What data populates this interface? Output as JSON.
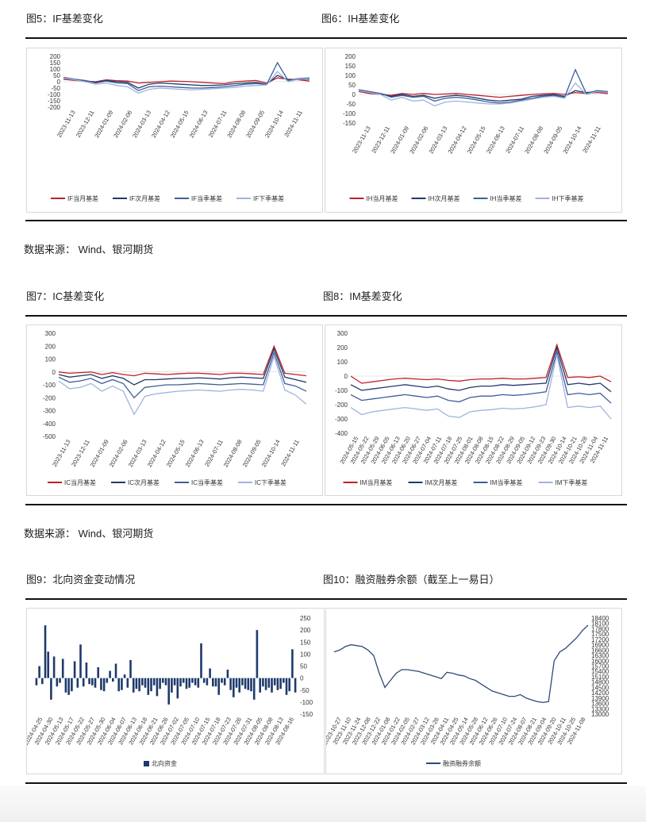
{
  "titles": {
    "fig5": "图5：IF基差变化",
    "fig6": "图6：IH基差变化",
    "fig7": "图7：IC基差变化",
    "fig8": "图8：IM基差变化",
    "fig9": "图9：北向资金变动情况",
    "fig10": "图10：融资融券余额（截至上一易日）"
  },
  "sources": {
    "s1": "数据来源：  Wind、银河期货",
    "s2": "数据来源：  Wind、银河期货"
  },
  "colors": {
    "near": "#c0202a",
    "next": "#1f3a6b",
    "quarter": "#3d5f9a",
    "far": "#9fb3dd",
    "bar": "#1f3a6b",
    "margin": "#2e4a78"
  },
  "chart_data": [
    {
      "id": "if",
      "type": "line",
      "ylim": [
        -200,
        200
      ],
      "yticks": [
        200,
        150,
        100,
        50,
        0,
        -50,
        -100,
        -150,
        -200
      ],
      "xticks": [
        "2023-11-13",
        "2023-12-11",
        "2024-01-09",
        "2024-02-06",
        "2024-03-13",
        "2024-04-12",
        "2024-05-15",
        "2024-06-13",
        "2024-07-11",
        "2024-08-08",
        "2024-09-05",
        "2024-10-14",
        "2024-11-11"
      ],
      "series": [
        {
          "name": "IF当月基差",
          "color_key": "near",
          "values": [
            20,
            10,
            5,
            0,
            15,
            8,
            5,
            -10,
            -5,
            0,
            5,
            3,
            0,
            -5,
            -10,
            -15,
            0,
            5,
            10,
            -10,
            30,
            20,
            15,
            5
          ]
        },
        {
          "name": "IF次月基差",
          "color_key": "next",
          "values": [
            30,
            15,
            8,
            -5,
            10,
            0,
            -5,
            -50,
            -20,
            -10,
            -15,
            -20,
            -25,
            -30,
            -28,
            -25,
            -15,
            -10,
            -5,
            -20,
            50,
            15,
            20,
            20
          ]
        },
        {
          "name": "IF当季基差",
          "color_key": "quarter",
          "values": [
            35,
            20,
            10,
            -10,
            5,
            -10,
            -15,
            -70,
            -40,
            -35,
            -40,
            -45,
            -50,
            -50,
            -45,
            -40,
            -30,
            -20,
            -15,
            -20,
            150,
            10,
            25,
            30
          ]
        },
        {
          "name": "IF下季基差",
          "color_key": "far",
          "values": [
            30,
            15,
            0,
            -20,
            -10,
            -30,
            -40,
            -90,
            -60,
            -50,
            -55,
            -60,
            -65,
            -60,
            -55,
            -50,
            -45,
            -35,
            -30,
            -25,
            80,
            0,
            20,
            25
          ]
        }
      ]
    },
    {
      "id": "ih",
      "type": "line",
      "ylim": [
        -150,
        200
      ],
      "yticks": [
        200,
        150,
        100,
        50,
        0,
        -50,
        -100,
        -150
      ],
      "xticks": [
        "2023-11-13",
        "2023-12-11",
        "2024-01-09",
        "2024-02-06",
        "2024-03-13",
        "2024-04-12",
        "2024-05-15",
        "2024-06-13",
        "2024-07-11",
        "2024-08-08",
        "2024-09-05",
        "2024-10-14",
        "2024-11-11"
      ],
      "series": [
        {
          "name": "IH当月基差",
          "color_key": "near",
          "values": [
            15,
            5,
            0,
            -5,
            5,
            0,
            5,
            0,
            2,
            5,
            0,
            -5,
            -10,
            -15,
            -10,
            -5,
            0,
            3,
            5,
            0,
            10,
            5,
            10,
            5
          ]
        },
        {
          "name": "IH次月基差",
          "color_key": "next",
          "values": [
            20,
            10,
            5,
            -10,
            0,
            -10,
            -5,
            -20,
            -10,
            -5,
            -10,
            -20,
            -30,
            -35,
            -30,
            -25,
            -10,
            -5,
            0,
            -10,
            20,
            10,
            15,
            10
          ]
        },
        {
          "name": "IH当季基差",
          "color_key": "quarter",
          "values": [
            25,
            15,
            5,
            -15,
            -5,
            -15,
            -10,
            -35,
            -20,
            -15,
            -20,
            -30,
            -40,
            -45,
            -40,
            -30,
            -20,
            -10,
            -5,
            -15,
            130,
            5,
            20,
            15
          ]
        },
        {
          "name": "IH下季基差",
          "color_key": "far",
          "values": [
            20,
            10,
            0,
            -30,
            -15,
            -35,
            -30,
            -60,
            -40,
            -35,
            -40,
            -45,
            -50,
            -50,
            -45,
            -35,
            -25,
            -15,
            -10,
            -20,
            60,
            0,
            15,
            10
          ]
        }
      ]
    },
    {
      "id": "ic",
      "type": "line",
      "ylim": [
        -500,
        300
      ],
      "yticks": [
        300,
        200,
        100,
        0,
        -100,
        -200,
        -300,
        -400,
        -500
      ],
      "xticks": [
        "2023-11-13",
        "2023-12-11",
        "2024-01-09",
        "2024-02-06",
        "2024-03-13",
        "2024-04-12",
        "2024-05-15",
        "2024-06-13",
        "2024-07-11",
        "2024-08-08",
        "2024-09-05",
        "2024-10-14",
        "2024-11-11"
      ],
      "series": [
        {
          "name": "IC当月基差",
          "color_key": "near",
          "values": [
            0,
            -10,
            -5,
            0,
            -20,
            -5,
            -20,
            -30,
            -10,
            -15,
            -20,
            -15,
            -10,
            -10,
            -15,
            -20,
            -10,
            -10,
            -15,
            -20,
            200,
            -10,
            -20,
            -30
          ]
        },
        {
          "name": "IC次月基差",
          "color_key": "next",
          "values": [
            -20,
            -40,
            -30,
            -20,
            -50,
            -30,
            -50,
            -100,
            -60,
            -60,
            -55,
            -50,
            -50,
            -45,
            -50,
            -55,
            -45,
            -40,
            -45,
            -50,
            180,
            -40,
            -60,
            -80
          ]
        },
        {
          "name": "IC当季基差",
          "color_key": "quarter",
          "values": [
            -40,
            -80,
            -70,
            -50,
            -90,
            -60,
            -90,
            -200,
            -120,
            -110,
            -100,
            -100,
            -95,
            -90,
            -95,
            -100,
            -95,
            -90,
            -95,
            -100,
            150,
            -90,
            -110,
            -150
          ]
        },
        {
          "name": "IC下季基差",
          "color_key": "far",
          "values": [
            -70,
            -130,
            -120,
            -90,
            -150,
            -110,
            -150,
            -330,
            -190,
            -170,
            -160,
            -150,
            -145,
            -140,
            -145,
            -150,
            -140,
            -135,
            -140,
            -150,
            120,
            -140,
            -180,
            -250
          ]
        }
      ]
    },
    {
      "id": "im",
      "type": "line",
      "ylim": [
        -400,
        300
      ],
      "yticks": [
        300,
        200,
        100,
        0,
        -100,
        -200,
        -300,
        -400
      ],
      "xticks": [
        "2024-05-15",
        "2024-05-22",
        "2024-05-29",
        "2024-06-05",
        "2024-06-13",
        "2024-06-20",
        "2024-06-27",
        "2024-07-04",
        "2024-07-11",
        "2024-07-18",
        "2024-07-25",
        "2024-08-01",
        "2024-08-08",
        "2024-08-15",
        "2024-08-22",
        "2024-08-29",
        "2024-09-05",
        "2024-09-12",
        "2024-09-23",
        "2024-09-30",
        "2024-10-14",
        "2024-10-21",
        "2024-10-28",
        "2024-11-04",
        "2024-11-11"
      ],
      "series": [
        {
          "name": "IM当月基差",
          "color_key": "near",
          "values": [
            0,
            -50,
            -40,
            -30,
            -20,
            -15,
            -20,
            -25,
            -20,
            -30,
            -35,
            -25,
            -20,
            -20,
            -15,
            -20,
            -20,
            -15,
            -10,
            220,
            -10,
            -5,
            -10,
            0,
            -40
          ]
        },
        {
          "name": "IM次月基差",
          "color_key": "next",
          "values": [
            -60,
            -100,
            -90,
            -80,
            -70,
            -60,
            -70,
            -80,
            -70,
            -90,
            -100,
            -80,
            -70,
            -70,
            -60,
            -65,
            -60,
            -55,
            -50,
            200,
            -60,
            -50,
            -60,
            -50,
            -110
          ]
        },
        {
          "name": "IM当季基差",
          "color_key": "quarter",
          "values": [
            -130,
            -170,
            -160,
            -150,
            -140,
            -130,
            -140,
            -150,
            -140,
            -170,
            -180,
            -150,
            -140,
            -140,
            -130,
            -135,
            -130,
            -120,
            -110,
            170,
            -130,
            -120,
            -130,
            -120,
            -190
          ]
        },
        {
          "name": "IM下季基差",
          "color_key": "far",
          "values": [
            -220,
            -270,
            -250,
            -240,
            -230,
            -220,
            -230,
            -240,
            -230,
            -280,
            -290,
            -250,
            -240,
            -235,
            -225,
            -230,
            -225,
            -215,
            -200,
            150,
            -220,
            -210,
            -220,
            -210,
            -300
          ]
        }
      ]
    },
    {
      "id": "north",
      "type": "bar",
      "ylim": [
        -150,
        250
      ],
      "yticks": [
        250,
        200,
        150,
        100,
        50,
        0,
        -50,
        -100,
        -150
      ],
      "xticks": [
        "2024-04-25",
        "2024-04-30",
        "2024-05-13",
        "2024-05-17",
        "2024-05-22",
        "2024-05-27",
        "2024-05-30",
        "2024-06-04",
        "2024-06-07",
        "2024-06-13",
        "2024-06-18",
        "2024-06-21",
        "2024-06-26",
        "2024-07-02",
        "2024-07-05",
        "2024-07-10",
        "2024-07-15",
        "2024-07-18",
        "2024-07-23",
        "2024-07-26",
        "2024-07-31",
        "2024-08-05",
        "2024-08-08",
        "2024-08-13",
        "2024-08-16"
      ],
      "series": [
        {
          "name": "北向资金",
          "color_key": "bar",
          "values": [
            -30,
            50,
            -25,
            220,
            110,
            -90,
            90,
            -35,
            -20,
            80,
            -60,
            -70,
            -55,
            70,
            -40,
            140,
            -35,
            65,
            -25,
            -30,
            -40,
            45,
            -50,
            -55,
            -20,
            30,
            -15,
            60,
            -55,
            -50,
            15,
            -40,
            75,
            -60,
            -45,
            -55,
            -30,
            -40,
            -70,
            -55,
            -30,
            -75,
            -45,
            -20,
            -30,
            -110,
            -60,
            -30,
            -85,
            -35,
            -20,
            -45,
            -40,
            -20,
            -30,
            -40,
            145,
            -20,
            -30,
            40,
            -35,
            -35,
            -70,
            -20,
            -30,
            35,
            -50,
            -80,
            -40,
            -60,
            -30,
            -45,
            -50,
            -55,
            -90,
            200,
            -60,
            -35,
            -50,
            -40,
            -60,
            -30,
            -50,
            -45,
            -20,
            -70,
            -55,
            120,
            -60
          ]
        }
      ]
    },
    {
      "id": "margin",
      "type": "line",
      "ylim": [
        13000,
        18400
      ],
      "yticks": [
        18400,
        18100,
        17800,
        17500,
        17200,
        16900,
        16600,
        16300,
        16000,
        15700,
        15400,
        15100,
        14800,
        14500,
        14200,
        13900,
        13600,
        13300,
        13000
      ],
      "xticks": [
        "2023-10-27",
        "2023-11-10",
        "2023-11-24",
        "2023-12-08",
        "2023-12-22",
        "2024-01-08",
        "2024-01-22",
        "2024-02-05",
        "2024-02-27",
        "2024-03-12",
        "2024-03-26",
        "2024-04-11",
        "2024-04-25",
        "2024-05-14",
        "2024-05-28",
        "2024-06-12",
        "2024-06-26",
        "2024-07-10",
        "2024-07-24",
        "2024-08-07",
        "2024-08-21",
        "2024-09-04",
        "2024-09-20",
        "2024-10-11",
        "2024-10-25",
        "2024-11-08"
      ],
      "series": [
        {
          "name": "融资融券余额",
          "color_key": "margin",
          "values": [
            16500,
            16600,
            16800,
            16900,
            16850,
            16800,
            16600,
            16300,
            15300,
            14500,
            14900,
            15300,
            15500,
            15500,
            15450,
            15400,
            15300,
            15200,
            15100,
            15000,
            15350,
            15300,
            15200,
            15150,
            15000,
            14900,
            14700,
            14500,
            14300,
            14200,
            14100,
            14000,
            14000,
            14100,
            13900,
            13800,
            13700,
            13650,
            13700,
            16000,
            16500,
            16700,
            17000,
            17300,
            17700,
            18000
          ]
        }
      ]
    }
  ]
}
